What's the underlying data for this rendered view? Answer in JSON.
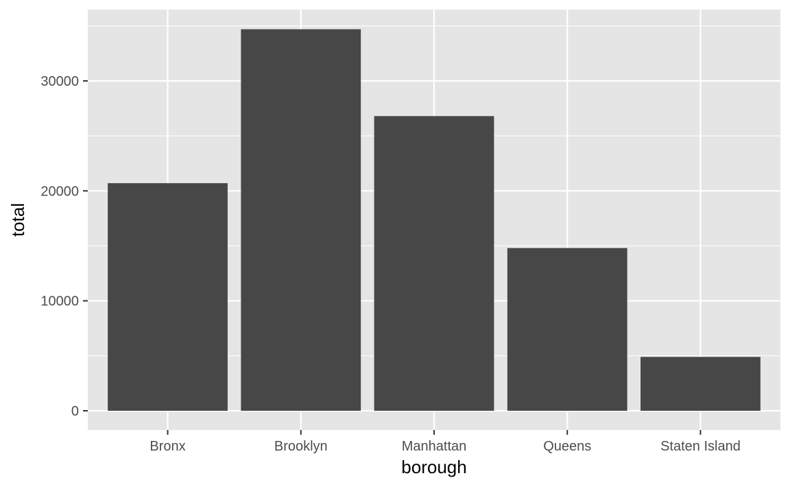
{
  "chart_data": {
    "type": "bar",
    "categories": [
      "Bronx",
      "Brooklyn",
      "Manhattan",
      "Queens",
      "Staten Island"
    ],
    "values": [
      20700,
      34700,
      26800,
      14800,
      4900
    ],
    "xlabel": "borough",
    "ylabel": "total",
    "ylim": [
      0,
      36000
    ],
    "yticks": [
      0,
      10000,
      20000,
      30000
    ],
    "ytick_labels": [
      "0",
      "10000",
      "20000",
      "30000"
    ],
    "grid": true,
    "legend": "none",
    "colors": {
      "panel": "#e5e5e5",
      "grid": "#ffffff",
      "bar": "#474747",
      "tick_text": "#4d4d4d",
      "axis_title": "#000000"
    }
  }
}
